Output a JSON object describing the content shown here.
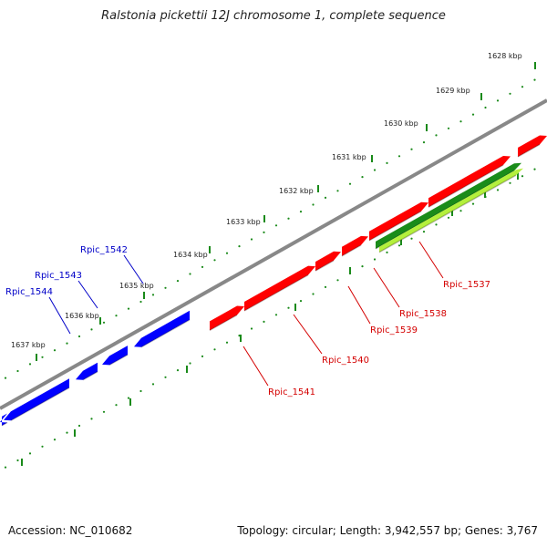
{
  "title": "Ralstonia pickettii 12J chromosome 1, complete sequence",
  "footer": {
    "accession": "Accession: NC_010682",
    "summary": "Topology: circular; Length: 3,942,557 bp; Genes: 3,767"
  },
  "colors": {
    "backbone": "#888888",
    "dots": "#1a8a1a",
    "forward_gene": "#ff0000",
    "reverse_gene": "#0000ff",
    "selected_gene_dark": "#1a8c1a",
    "selected_gene_light": "#b4f03c"
  },
  "scale_ticks": [
    {
      "label": "1628 kbp"
    },
    {
      "label": "1629 kbp"
    },
    {
      "label": "1630 kbp"
    },
    {
      "label": "1631 kbp"
    },
    {
      "label": "1632 kbp"
    },
    {
      "label": "1633 kbp"
    },
    {
      "label": "1634 kbp"
    },
    {
      "label": "1635 kbp"
    },
    {
      "label": "1636 kbp"
    },
    {
      "label": "1637 kbp"
    }
  ],
  "genes": [
    {
      "label": "Rpic_1537",
      "strand": "forward",
      "selected": true
    },
    {
      "label": "Rpic_1538",
      "strand": "forward"
    },
    {
      "label": "Rpic_1539",
      "strand": "forward"
    },
    {
      "label": "Rpic_1540",
      "strand": "forward"
    },
    {
      "label": "Rpic_1541",
      "strand": "forward"
    },
    {
      "label": "Rpic_1542",
      "strand": "reverse"
    },
    {
      "label": "Rpic_1543",
      "strand": "reverse"
    },
    {
      "label": "Rpic_1544",
      "strand": "reverse"
    }
  ]
}
